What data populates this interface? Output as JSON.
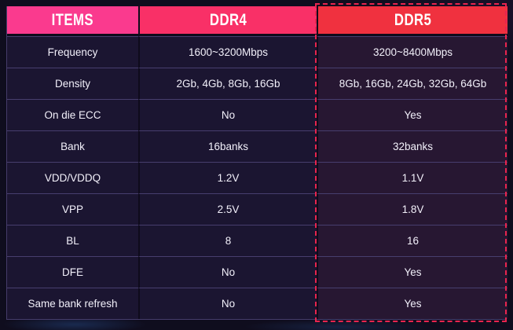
{
  "chart_data": {
    "type": "table",
    "columns": [
      "ITEMS",
      "DDR4",
      "DDR5"
    ],
    "rows": [
      [
        "Frequency",
        "1600~3200Mbps",
        "3200~8400Mbps"
      ],
      [
        "Density",
        "2Gb, 4Gb, 8Gb, 16Gb",
        "8Gb, 16Gb, 24Gb, 32Gb, 64Gb"
      ],
      [
        "On die ECC",
        "No",
        "Yes"
      ],
      [
        "Bank",
        "16banks",
        "32banks"
      ],
      [
        "VDD/VDDQ",
        "1.2V",
        "1.1V"
      ],
      [
        "VPP",
        "2.5V",
        "1.8V"
      ],
      [
        "BL",
        "8",
        "16"
      ],
      [
        "DFE",
        "No",
        "Yes"
      ],
      [
        "Same bank refresh",
        "No",
        "Yes"
      ]
    ],
    "layout_hints": {
      "highlighted_column": "DDR5",
      "highlight_style": "red dashed border around full DDR5 column",
      "header_style": "pink-to-red gradient across the three header cells"
    }
  },
  "colors": {
    "header_items_bg": "#fa3a8e",
    "header_ddr4_bg": "#f93067",
    "header_ddr5_bg": "#f0313f",
    "ddr5_highlight_border": "#e8244e",
    "body_cell_bg": "#1b1531",
    "ddr5_cell_bg": "#271732",
    "page_bg": "#0f0d1e",
    "text": "#f2f0fa"
  }
}
